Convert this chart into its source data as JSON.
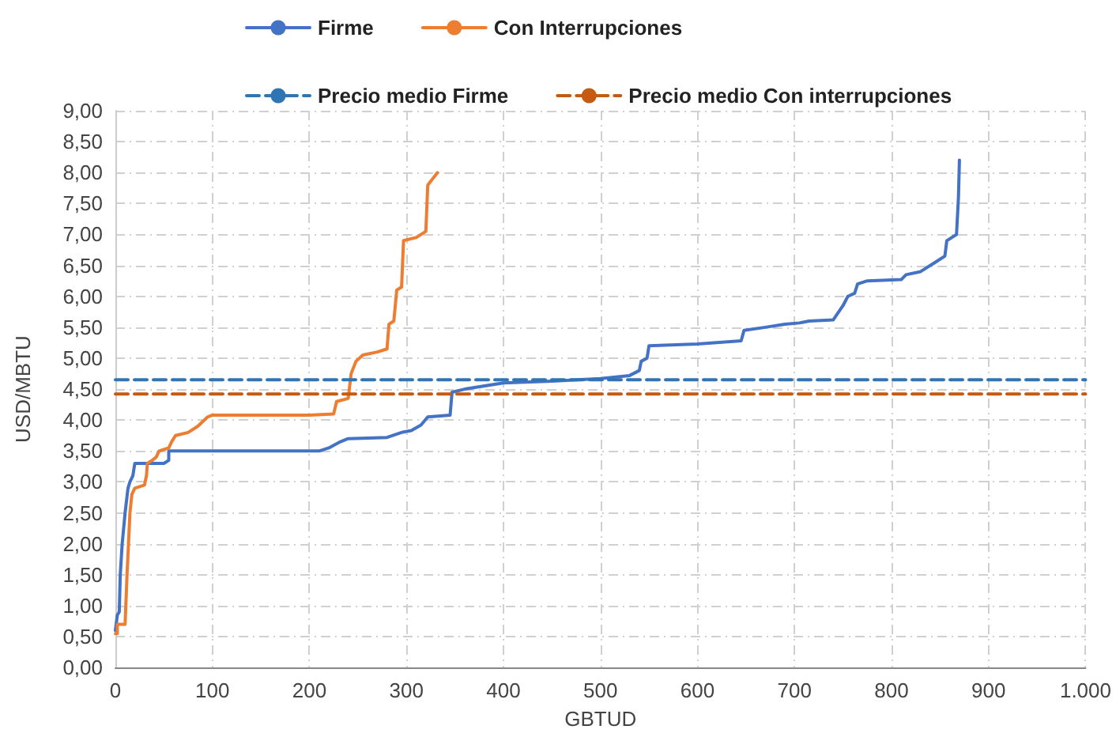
{
  "chart_data": {
    "type": "line",
    "xlabel": "GBTUD",
    "ylabel": "USD/MBTU",
    "xlim": [
      0,
      1000
    ],
    "xticks": [
      0,
      100,
      200,
      300,
      400,
      500,
      600,
      700,
      800,
      900,
      {
        "value": 1000,
        "label": "1.000"
      }
    ],
    "ylim": [
      0,
      9
    ],
    "yticks": [
      {
        "value": 0,
        "label": "0,00"
      },
      {
        "value": 0.5,
        "label": "0,50"
      },
      {
        "value": 1,
        "label": "1,00"
      },
      {
        "value": 1.5,
        "label": "1,50"
      },
      {
        "value": 2,
        "label": "2,00"
      },
      {
        "value": 2.5,
        "label": "2,50"
      },
      {
        "value": 3,
        "label": "3,00"
      },
      {
        "value": 3.5,
        "label": "3,50"
      },
      {
        "value": 4,
        "label": "4,00"
      },
      {
        "value": 4.5,
        "label": "4,50"
      },
      {
        "value": 5,
        "label": "5,00"
      },
      {
        "value": 5.5,
        "label": "5,50"
      },
      {
        "value": 6,
        "label": "6,00"
      },
      {
        "value": 6.5,
        "label": "6,50"
      },
      {
        "value": 7,
        "label": "7,00"
      },
      {
        "value": 7.5,
        "label": "7,50"
      },
      {
        "value": 8,
        "label": "8,00"
      },
      {
        "value": 8.5,
        "label": "8,50"
      },
      {
        "value": 9,
        "label": "9,00"
      }
    ],
    "grid": true,
    "legend": "top",
    "marker": "none",
    "series": [
      {
        "name": "Firme",
        "color": "#4472c4",
        "line_style": "solid",
        "x": [
          0,
          2,
          4,
          5,
          7,
          10,
          13,
          15,
          18,
          20,
          50,
          55,
          55,
          150,
          210,
          220,
          232,
          240,
          280,
          295,
          305,
          315,
          322,
          345,
          347,
          360,
          400,
          450,
          500,
          530,
          540,
          542,
          548,
          550,
          600,
          645,
          648,
          670,
          690,
          705,
          715,
          740,
          750,
          755,
          762,
          765,
          775,
          810,
          815,
          830,
          845,
          855,
          857,
          867,
          869,
          870
        ],
        "values": [
          0.6,
          0.85,
          0.9,
          1.5,
          2.0,
          2.5,
          2.9,
          3.0,
          3.1,
          3.3,
          3.3,
          3.35,
          3.5,
          3.5,
          3.5,
          3.55,
          3.65,
          3.7,
          3.72,
          3.8,
          3.83,
          3.92,
          4.05,
          4.08,
          4.45,
          4.5,
          4.6,
          4.63,
          4.67,
          4.72,
          4.8,
          4.95,
          5.0,
          5.2,
          5.23,
          5.28,
          5.45,
          5.5,
          5.55,
          5.57,
          5.6,
          5.62,
          5.85,
          6.0,
          6.05,
          6.2,
          6.25,
          6.27,
          6.35,
          6.4,
          6.55,
          6.65,
          6.9,
          7.0,
          7.6,
          8.2
        ]
      },
      {
        "name": "Con Interrupciones",
        "color": "#ed7d31",
        "line_style": "solid",
        "x": [
          0,
          2,
          2,
          10,
          12,
          15,
          17,
          20,
          30,
          32,
          33,
          38,
          42,
          45,
          55,
          58,
          62,
          75,
          85,
          95,
          100,
          200,
          225,
          228,
          240,
          243,
          248,
          255,
          270,
          280,
          282,
          287,
          290,
          295,
          297,
          310,
          320,
          322,
          332
        ],
        "values": [
          0.55,
          0.55,
          0.7,
          0.7,
          1.5,
          2.5,
          2.8,
          2.9,
          2.95,
          3.1,
          3.3,
          3.35,
          3.4,
          3.5,
          3.55,
          3.65,
          3.75,
          3.8,
          3.9,
          4.05,
          4.08,
          4.08,
          4.1,
          4.3,
          4.35,
          4.75,
          4.95,
          5.05,
          5.1,
          5.15,
          5.55,
          5.6,
          6.1,
          6.15,
          6.9,
          6.95,
          7.05,
          7.8,
          8.0
        ]
      },
      {
        "name": "Precio medio Firme",
        "color": "#2e75b6",
        "line_style": "dashed",
        "x": [
          0,
          1000
        ],
        "values": [
          4.65,
          4.65
        ]
      },
      {
        "name": "Precio medio Con interrupciones",
        "color": "#c55a11",
        "line_style": "dashed",
        "x": [
          0,
          1000
        ],
        "values": [
          4.42,
          4.42
        ]
      }
    ]
  }
}
